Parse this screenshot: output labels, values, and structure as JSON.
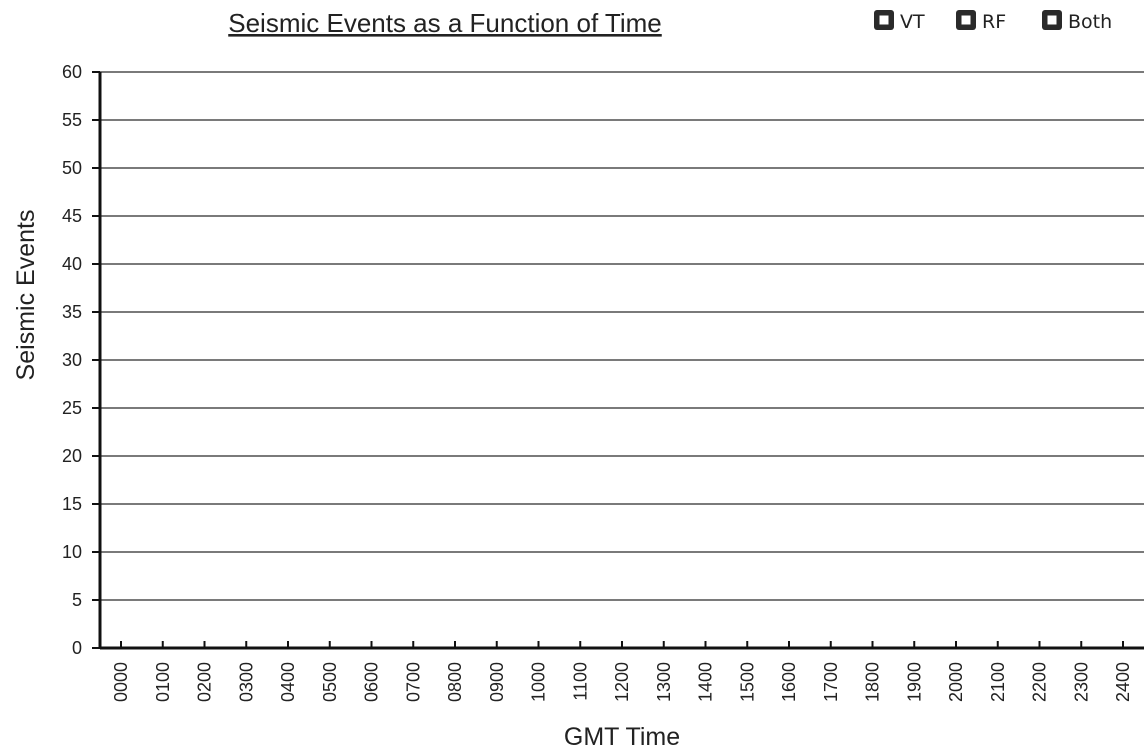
{
  "chart_data": {
    "type": "bar",
    "title": "Seismic Events as a Function of Time",
    "xlabel": "GMT Time",
    "ylabel": "Seismic Events",
    "ylim": [
      0,
      60
    ],
    "yticks": [
      0,
      5,
      10,
      15,
      20,
      25,
      30,
      35,
      40,
      45,
      50,
      55,
      60
    ],
    "grid": true,
    "legend_position": "top-right",
    "categories": [
      "0000",
      "0100",
      "0200",
      "0300",
      "0400",
      "0500",
      "0600",
      "0700",
      "0800",
      "0900",
      "1000",
      "1100",
      "1200",
      "1300",
      "1400",
      "1500",
      "1600",
      "1700",
      "1800",
      "1900",
      "2000",
      "2100",
      "2200",
      "2300",
      "2400"
    ],
    "series": [
      {
        "name": "VT",
        "color": "#2a2a2a",
        "values": [
          0,
          0,
          0,
          0,
          0,
          0,
          0,
          0,
          0,
          0,
          0,
          0,
          0,
          0,
          0,
          0,
          0,
          0,
          0,
          0,
          0,
          0,
          0,
          0,
          0
        ]
      },
      {
        "name": "RF",
        "color": "#2a2a2a",
        "values": [
          0,
          0,
          0,
          0,
          0,
          0,
          0,
          0,
          0,
          0,
          0,
          0,
          0,
          0,
          0,
          0,
          0,
          0,
          0,
          0,
          0,
          0,
          0,
          0,
          0
        ]
      },
      {
        "name": "Both",
        "color": "#2a2a2a",
        "values": [
          0,
          0,
          0,
          0,
          0,
          0,
          0,
          0,
          0,
          0,
          0,
          0,
          0,
          0,
          0,
          0,
          0,
          0,
          0,
          0,
          0,
          0,
          0,
          0,
          0
        ]
      }
    ]
  }
}
